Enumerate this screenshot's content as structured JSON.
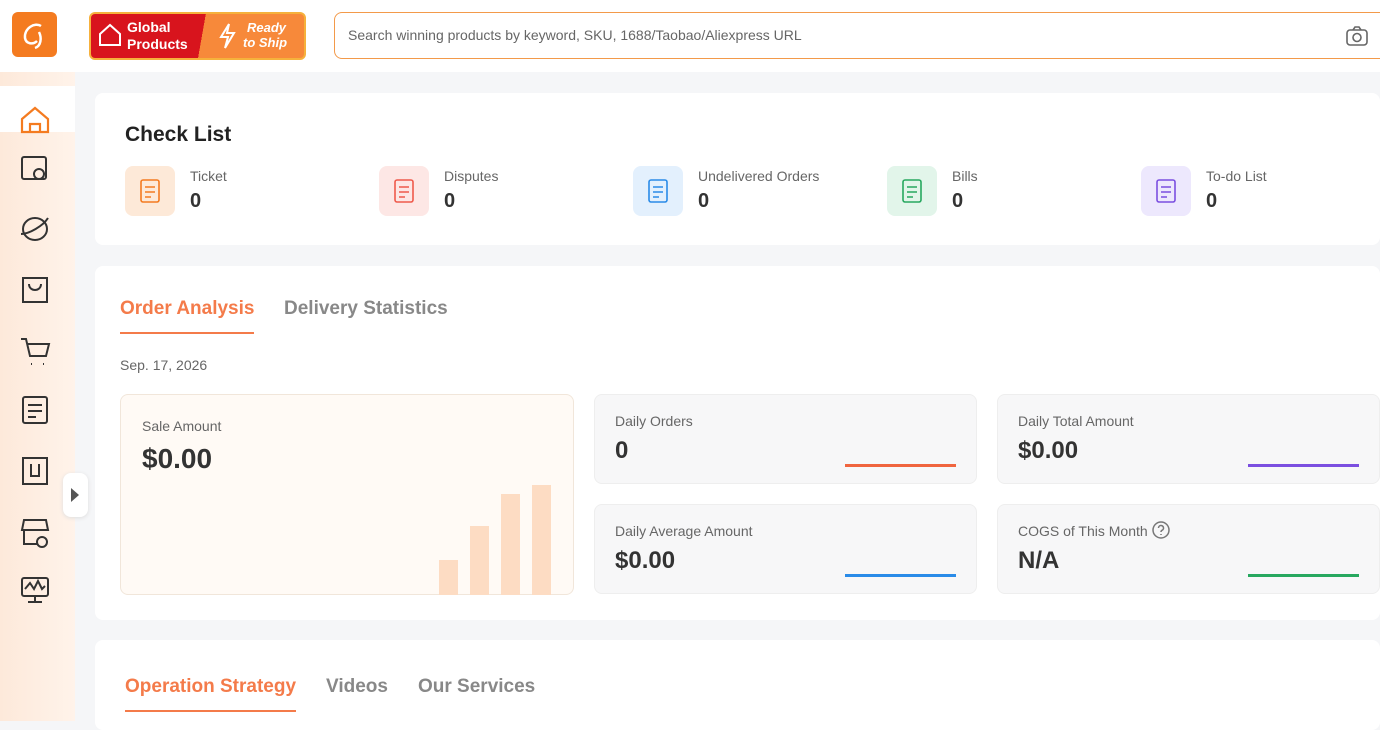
{
  "header": {
    "banner": {
      "line1": "Global",
      "line2": "Products",
      "badge_line1": "Ready",
      "badge_line2": "to Ship"
    },
    "search_placeholder": "Search winning products by keyword, SKU, 1688/Taobao/Aliexpress URL"
  },
  "check_list": {
    "title": "Check List",
    "items": [
      {
        "label": "Ticket",
        "count": 0
      },
      {
        "label": "Disputes",
        "count": 0
      },
      {
        "label": "Undelivered Orders",
        "count": 0
      },
      {
        "label": "Bills",
        "count": 0
      },
      {
        "label": "To-do List",
        "count": 0
      }
    ]
  },
  "order_section": {
    "tabs": [
      "Order Analysis",
      "Delivery Statistics"
    ],
    "active_tab": 0,
    "date": "Sep. 17, 2026",
    "sale": {
      "label": "Sale Amount",
      "value": "$0.00"
    },
    "stats": [
      {
        "label": "Daily Orders",
        "value": "0",
        "color": "#f0653f"
      },
      {
        "label": "Daily Total Amount",
        "value": "$0.00",
        "color": "#7b4fe0"
      },
      {
        "label": "Daily Average Amount",
        "value": "$0.00",
        "color": "#2a8be8"
      },
      {
        "label": "COGS of This Month",
        "value": "N/A",
        "color": "#27a85f"
      }
    ]
  },
  "bottom_tabs": {
    "tabs": [
      "Operation Strategy",
      "Videos",
      "Our Services"
    ],
    "active_tab": 0
  }
}
